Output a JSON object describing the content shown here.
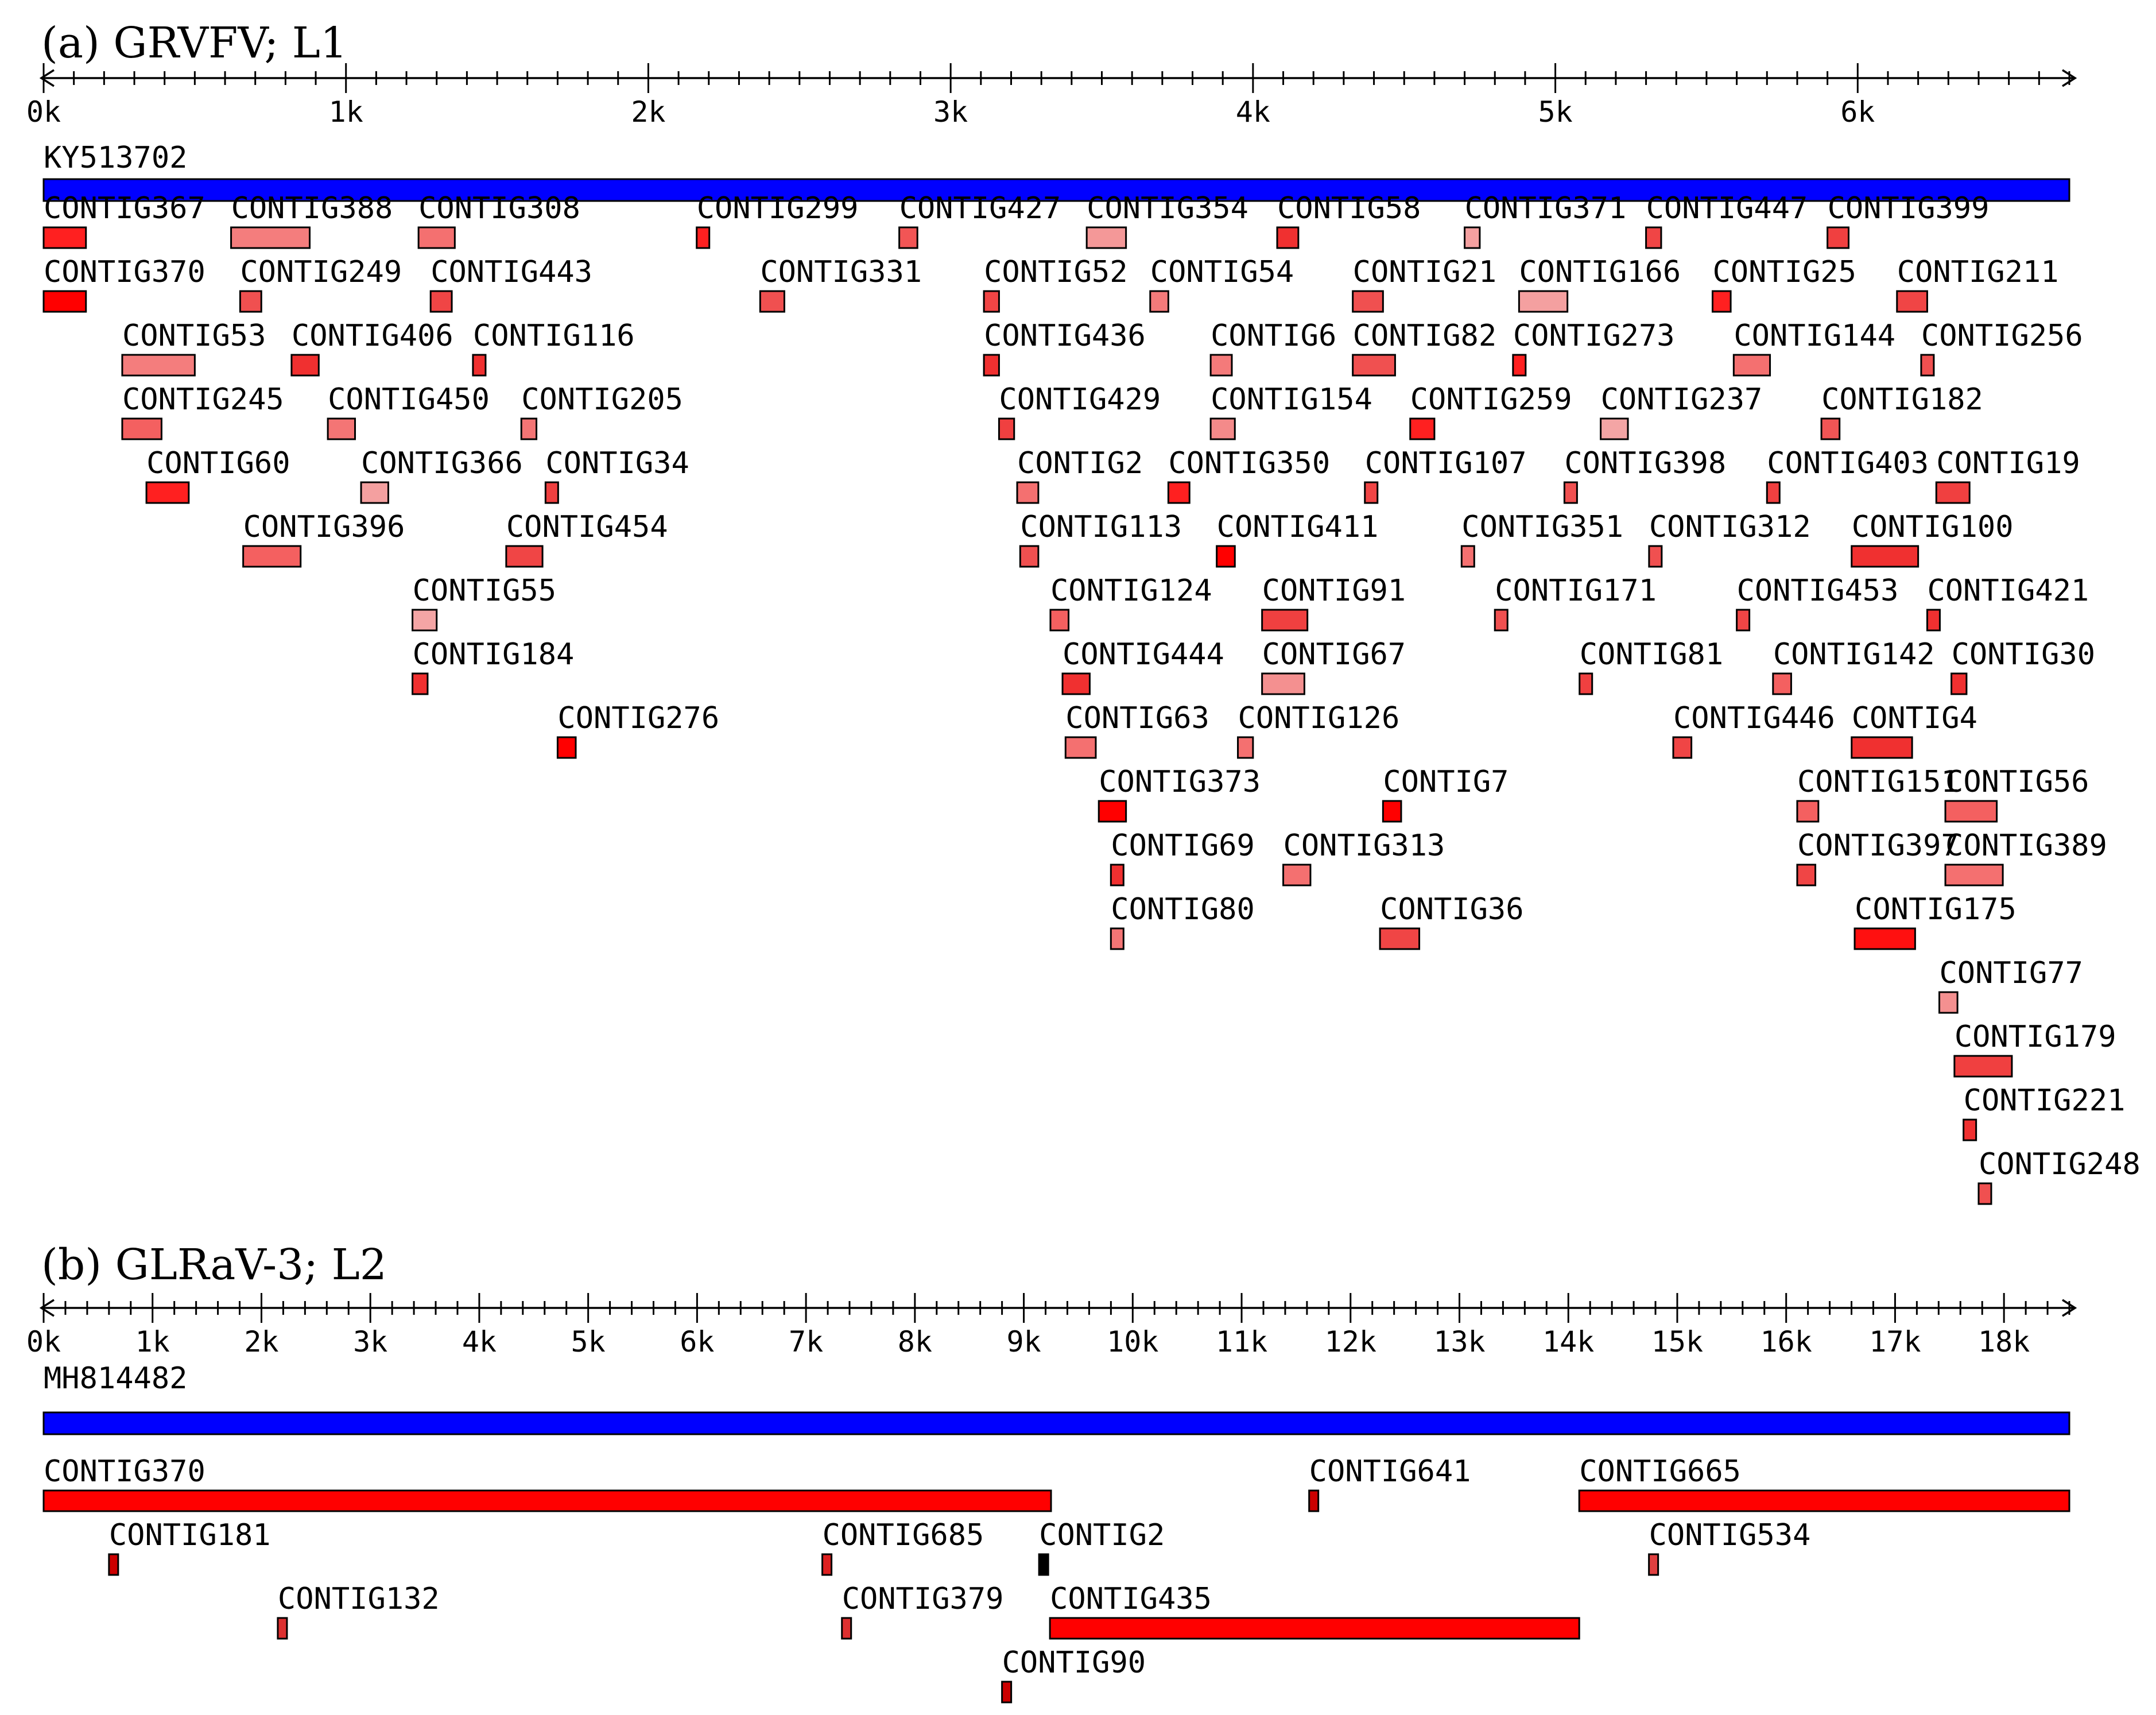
{
  "panels": [
    {
      "id": "a",
      "title": "(a) GRVFV; L1",
      "ruler_max": 6700,
      "ruler_minor_step": 100,
      "ruler_major_step": 1000,
      "tick_labels": [
        "0k",
        "1k",
        "2k",
        "3k",
        "4k",
        "5k",
        "6k"
      ],
      "reference": {
        "label": "KY513702",
        "start": 0,
        "end": 6700,
        "color": "#0000ff"
      },
      "contigs": [
        {
          "name": "CONTIG367",
          "row": 0,
          "start": 0,
          "end": 140,
          "color": "#ff2020"
        },
        {
          "name": "CONTIG388",
          "row": 0,
          "start": 620,
          "end": 880,
          "color": "#f47d7d"
        },
        {
          "name": "CONTIG308",
          "row": 0,
          "start": 1240,
          "end": 1360,
          "color": "#f47070"
        },
        {
          "name": "CONTIG299",
          "row": 0,
          "start": 2160,
          "end": 2200,
          "color": "#ff2020"
        },
        {
          "name": "CONTIG427",
          "row": 0,
          "start": 2830,
          "end": 2890,
          "color": "#f25555"
        },
        {
          "name": "CONTIG354",
          "row": 0,
          "start": 3450,
          "end": 3580,
          "color": "#f49898"
        },
        {
          "name": "CONTIG58",
          "row": 0,
          "start": 4080,
          "end": 4150,
          "color": "#f03030"
        },
        {
          "name": "CONTIG371",
          "row": 0,
          "start": 4700,
          "end": 4750,
          "color": "#f4a0a0"
        },
        {
          "name": "CONTIG447",
          "row": 0,
          "start": 5300,
          "end": 5350,
          "color": "#f04545"
        },
        {
          "name": "CONTIG399",
          "row": 0,
          "start": 5900,
          "end": 5970,
          "color": "#f04040"
        },
        {
          "name": "CONTIG370",
          "row": 1,
          "start": 0,
          "end": 140,
          "color": "#ff0000"
        },
        {
          "name": "CONTIG249",
          "row": 1,
          "start": 650,
          "end": 720,
          "color": "#f05050"
        },
        {
          "name": "CONTIG443",
          "row": 1,
          "start": 1280,
          "end": 1350,
          "color": "#f04545"
        },
        {
          "name": "CONTIG331",
          "row": 1,
          "start": 2370,
          "end": 2450,
          "color": "#f05050"
        },
        {
          "name": "CONTIG52",
          "row": 1,
          "start": 3110,
          "end": 3160,
          "color": "#f04545"
        },
        {
          "name": "CONTIG54",
          "row": 1,
          "start": 3660,
          "end": 3720,
          "color": "#f47a7a"
        },
        {
          "name": "CONTIG21",
          "row": 1,
          "start": 4330,
          "end": 4430,
          "color": "#f05050"
        },
        {
          "name": "CONTIG166",
          "row": 1,
          "start": 4880,
          "end": 5040,
          "color": "#f4a0a0"
        },
        {
          "name": "CONTIG25",
          "row": 1,
          "start": 5520,
          "end": 5580,
          "color": "#ff2020"
        },
        {
          "name": "CONTIG211",
          "row": 1,
          "start": 6130,
          "end": 6230,
          "color": "#f04545"
        },
        {
          "name": "CONTIG53",
          "row": 2,
          "start": 260,
          "end": 500,
          "color": "#f47d7d"
        },
        {
          "name": "CONTIG406",
          "row": 2,
          "start": 820,
          "end": 910,
          "color": "#f03030"
        },
        {
          "name": "CONTIG116",
          "row": 2,
          "start": 1420,
          "end": 1450,
          "color": "#f03030"
        },
        {
          "name": "CONTIG436",
          "row": 2,
          "start": 3110,
          "end": 3160,
          "color": "#f03030"
        },
        {
          "name": "CONTIG6",
          "row": 2,
          "start": 3860,
          "end": 3930,
          "color": "#f47a7a"
        },
        {
          "name": "CONTIG82",
          "row": 2,
          "start": 4330,
          "end": 4470,
          "color": "#f05050"
        },
        {
          "name": "CONTIG273",
          "row": 2,
          "start": 4860,
          "end": 4900,
          "color": "#ff2020"
        },
        {
          "name": "CONTIG144",
          "row": 2,
          "start": 5590,
          "end": 5710,
          "color": "#f47070"
        },
        {
          "name": "CONTIG256",
          "row": 2,
          "start": 6210,
          "end": 6250,
          "color": "#f05050"
        },
        {
          "name": "CONTIG245",
          "row": 3,
          "start": 260,
          "end": 390,
          "color": "#f46060"
        },
        {
          "name": "CONTIG450",
          "row": 3,
          "start": 940,
          "end": 1030,
          "color": "#f47575"
        },
        {
          "name": "CONTIG205",
          "row": 3,
          "start": 1580,
          "end": 1630,
          "color": "#f47575"
        },
        {
          "name": "CONTIG429",
          "row": 3,
          "start": 3160,
          "end": 3210,
          "color": "#f04040"
        },
        {
          "name": "CONTIG154",
          "row": 3,
          "start": 3860,
          "end": 3940,
          "color": "#f48a8a"
        },
        {
          "name": "CONTIG259",
          "row": 3,
          "start": 4520,
          "end": 4600,
          "color": "#ff2020"
        },
        {
          "name": "CONTIG237",
          "row": 3,
          "start": 5150,
          "end": 5240,
          "color": "#f4a5a5"
        },
        {
          "name": "CONTIG182",
          "row": 3,
          "start": 5880,
          "end": 5940,
          "color": "#f05555"
        },
        {
          "name": "CONTIG60",
          "row": 4,
          "start": 340,
          "end": 480,
          "color": "#ff2020"
        },
        {
          "name": "CONTIG366",
          "row": 4,
          "start": 1050,
          "end": 1140,
          "color": "#f4a0a0"
        },
        {
          "name": "CONTIG34",
          "row": 4,
          "start": 1660,
          "end": 1700,
          "color": "#f04040"
        },
        {
          "name": "CONTIG2",
          "row": 4,
          "start": 3220,
          "end": 3290,
          "color": "#f47070"
        },
        {
          "name": "CONTIG350",
          "row": 4,
          "start": 3720,
          "end": 3790,
          "color": "#ff2020"
        },
        {
          "name": "CONTIG107",
          "row": 4,
          "start": 4370,
          "end": 4410,
          "color": "#f04545"
        },
        {
          "name": "CONTIG398",
          "row": 4,
          "start": 5030,
          "end": 5070,
          "color": "#f05050"
        },
        {
          "name": "CONTIG403",
          "row": 4,
          "start": 5700,
          "end": 5740,
          "color": "#f04040"
        },
        {
          "name": "CONTIG19",
          "row": 4,
          "start": 6260,
          "end": 6370,
          "color": "#f04040"
        },
        {
          "name": "CONTIG396",
          "row": 5,
          "start": 660,
          "end": 850,
          "color": "#f46060"
        },
        {
          "name": "CONTIG454",
          "row": 5,
          "start": 1530,
          "end": 1650,
          "color": "#f04545"
        },
        {
          "name": "CONTIG113",
          "row": 5,
          "start": 3230,
          "end": 3290,
          "color": "#f05050"
        },
        {
          "name": "CONTIG411",
          "row": 5,
          "start": 3880,
          "end": 3940,
          "color": "#ff0000"
        },
        {
          "name": "CONTIG351",
          "row": 5,
          "start": 4690,
          "end": 4730,
          "color": "#f47070"
        },
        {
          "name": "CONTIG312",
          "row": 5,
          "start": 5310,
          "end": 5350,
          "color": "#f05050"
        },
        {
          "name": "CONTIG100",
          "row": 5,
          "start": 5980,
          "end": 6200,
          "color": "#f03030"
        },
        {
          "name": "CONTIG55",
          "row": 6,
          "start": 1220,
          "end": 1300,
          "color": "#f4a5a5"
        },
        {
          "name": "CONTIG124",
          "row": 6,
          "start": 3330,
          "end": 3390,
          "color": "#f46060"
        },
        {
          "name": "CONTIG91",
          "row": 6,
          "start": 4030,
          "end": 4180,
          "color": "#f04040"
        },
        {
          "name": "CONTIG171",
          "row": 6,
          "start": 4800,
          "end": 4840,
          "color": "#f05050"
        },
        {
          "name": "CONTIG453",
          "row": 6,
          "start": 5600,
          "end": 5640,
          "color": "#f04545"
        },
        {
          "name": "CONTIG421",
          "row": 6,
          "start": 6230,
          "end": 6270,
          "color": "#f03030"
        },
        {
          "name": "CONTIG184",
          "row": 7,
          "start": 1220,
          "end": 1270,
          "color": "#f03030"
        },
        {
          "name": "CONTIG444",
          "row": 7,
          "start": 3370,
          "end": 3460,
          "color": "#f03030"
        },
        {
          "name": "CONTIG67",
          "row": 7,
          "start": 4030,
          "end": 4170,
          "color": "#f49090"
        },
        {
          "name": "CONTIG81",
          "row": 7,
          "start": 5080,
          "end": 5120,
          "color": "#f04040"
        },
        {
          "name": "CONTIG142",
          "row": 7,
          "start": 5720,
          "end": 5780,
          "color": "#f46060"
        },
        {
          "name": "CONTIG30",
          "row": 7,
          "start": 6310,
          "end": 6360,
          "color": "#f03030"
        },
        {
          "name": "CONTIG276",
          "row": 8,
          "start": 1700,
          "end": 1760,
          "color": "#ff0000"
        },
        {
          "name": "CONTIG63",
          "row": 8,
          "start": 3380,
          "end": 3480,
          "color": "#f47070"
        },
        {
          "name": "CONTIG126",
          "row": 8,
          "start": 3950,
          "end": 4000,
          "color": "#f47070"
        },
        {
          "name": "CONTIG446",
          "row": 8,
          "start": 5390,
          "end": 5450,
          "color": "#f04545"
        },
        {
          "name": "CONTIG4",
          "row": 8,
          "start": 5980,
          "end": 6180,
          "color": "#f03030"
        },
        {
          "name": "CONTIG373",
          "row": 9,
          "start": 3490,
          "end": 3580,
          "color": "#ff0000"
        },
        {
          "name": "CONTIG7",
          "row": 9,
          "start": 4430,
          "end": 4490,
          "color": "#ff0000"
        },
        {
          "name": "CONTIG151",
          "row": 9,
          "start": 5800,
          "end": 5870,
          "color": "#f46060"
        },
        {
          "name": "CONTIG56",
          "row": 9,
          "start": 6290,
          "end": 6460,
          "color": "#f46060"
        },
        {
          "name": "CONTIG69",
          "row": 10,
          "start": 3530,
          "end": 3570,
          "color": "#f03030"
        },
        {
          "name": "CONTIG313",
          "row": 10,
          "start": 4100,
          "end": 4190,
          "color": "#f47070"
        },
        {
          "name": "CONTIG397",
          "row": 10,
          "start": 5800,
          "end": 5860,
          "color": "#f04545"
        },
        {
          "name": "CONTIG389",
          "row": 10,
          "start": 6290,
          "end": 6480,
          "color": "#f47070"
        },
        {
          "name": "CONTIG80",
          "row": 11,
          "start": 3530,
          "end": 3570,
          "color": "#f47575"
        },
        {
          "name": "CONTIG36",
          "row": 11,
          "start": 4420,
          "end": 4550,
          "color": "#f04545"
        },
        {
          "name": "CONTIG175",
          "row": 11,
          "start": 5990,
          "end": 6190,
          "color": "#ff1010"
        },
        {
          "name": "CONTIG77",
          "row": 12,
          "start": 6270,
          "end": 6330,
          "color": "#f49090"
        },
        {
          "name": "CONTIG179",
          "row": 13,
          "start": 6320,
          "end": 6510,
          "color": "#f04040"
        },
        {
          "name": "CONTIG221",
          "row": 14,
          "start": 6350,
          "end": 6390,
          "color": "#f03030"
        },
        {
          "name": "CONTIG248",
          "row": 15,
          "start": 6400,
          "end": 6440,
          "color": "#f05050"
        }
      ]
    },
    {
      "id": "b",
      "title": "(b) GLRaV-3; L2",
      "ruler_max": 18600,
      "ruler_minor_step": 200,
      "ruler_major_step": 1000,
      "tick_labels": [
        "0k",
        "1k",
        "2k",
        "3k",
        "4k",
        "5k",
        "6k",
        "7k",
        "8k",
        "9k",
        "10k",
        "11k",
        "12k",
        "13k",
        "14k",
        "15k",
        "16k",
        "17k",
        "18k"
      ],
      "reference": {
        "label": "MH814482",
        "start": 0,
        "end": 18600,
        "color": "#0000ff"
      },
      "contigs": [
        {
          "name": "CONTIG370",
          "row": 0,
          "start": 0,
          "end": 9250,
          "color": "#ff0000"
        },
        {
          "name": "CONTIG641",
          "row": 0,
          "start": 11620,
          "end": 11700,
          "color": "#cc0000"
        },
        {
          "name": "CONTIG665",
          "row": 0,
          "start": 14100,
          "end": 18600,
          "color": "#ff0000"
        },
        {
          "name": "CONTIG181",
          "row": 1,
          "start": 600,
          "end": 680,
          "color": "#cc0000"
        },
        {
          "name": "CONTIG685",
          "row": 1,
          "start": 7150,
          "end": 7230,
          "color": "#dd2020"
        },
        {
          "name": "CONTIG2",
          "row": 1,
          "start": 9140,
          "end": 9220,
          "color": "#000000"
        },
        {
          "name": "CONTIG534",
          "row": 1,
          "start": 14740,
          "end": 14820,
          "color": "#e04040"
        },
        {
          "name": "CONTIG132",
          "row": 2,
          "start": 2150,
          "end": 2230,
          "color": "#dd3030"
        },
        {
          "name": "CONTIG379",
          "row": 2,
          "start": 7330,
          "end": 7410,
          "color": "#dd3030"
        },
        {
          "name": "CONTIG435",
          "row": 2,
          "start": 9240,
          "end": 14100,
          "color": "#ff0000"
        },
        {
          "name": "CONTIG90",
          "row": 3,
          "start": 8800,
          "end": 8880,
          "color": "#cc0000"
        }
      ]
    }
  ]
}
